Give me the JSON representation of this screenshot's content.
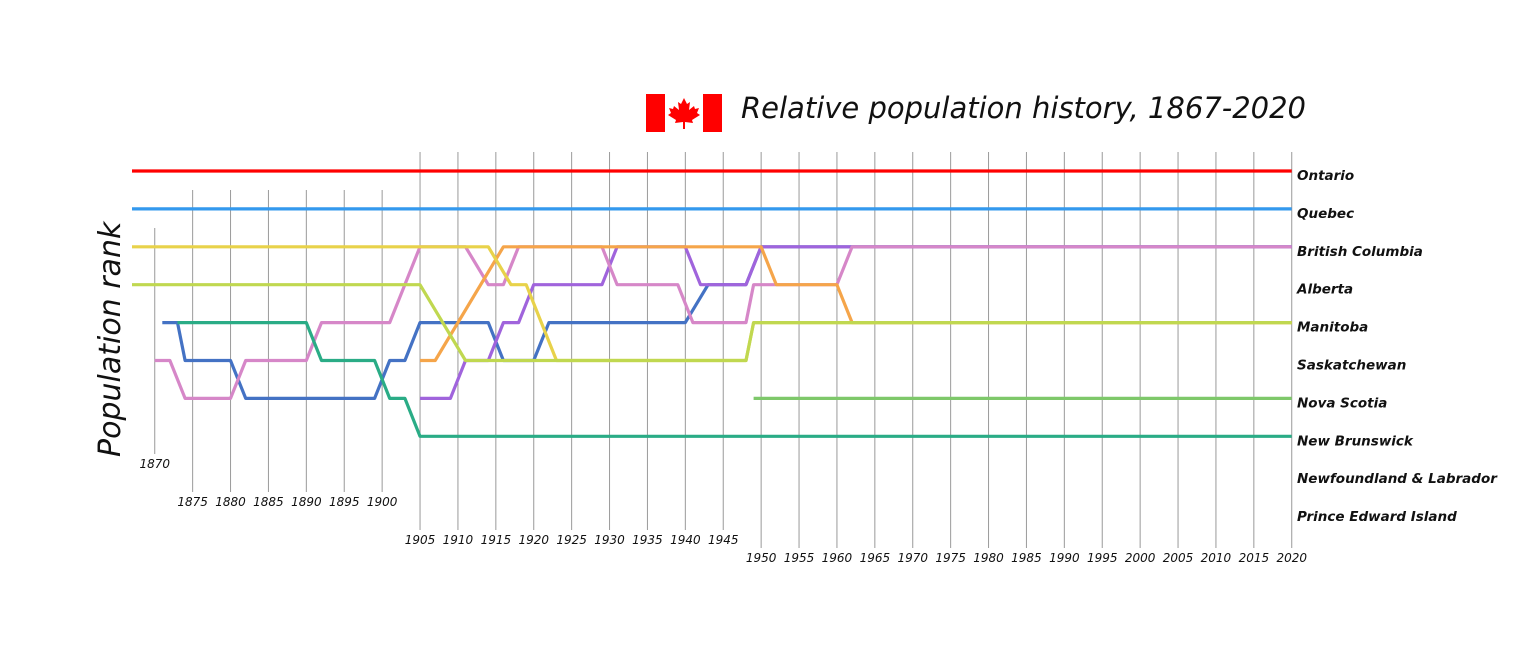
{
  "chart_data": {
    "type": "line",
    "title": "Relative population history, 1867-2020",
    "ylabel": "Population rank",
    "xlabel": "",
    "xlim": [
      1867,
      2020
    ],
    "x_ticks": [
      {
        "year": 1870,
        "label": "1870"
      },
      {
        "year": 1875,
        "label": "1875"
      },
      {
        "year": 1880,
        "label": "1880"
      },
      {
        "year": 1885,
        "label": "1885"
      },
      {
        "year": 1890,
        "label": "1890"
      },
      {
        "year": 1895,
        "label": "1895"
      },
      {
        "year": 1900,
        "label": "1900"
      },
      {
        "year": 1905,
        "label": "1905"
      },
      {
        "year": 1910,
        "label": "1910"
      },
      {
        "year": 1915,
        "label": "1915"
      },
      {
        "year": 1920,
        "label": "1920"
      },
      {
        "year": 1925,
        "label": "1925"
      },
      {
        "year": 1930,
        "label": "1930"
      },
      {
        "year": 1935,
        "label": "1935"
      },
      {
        "year": 1940,
        "label": "1940"
      },
      {
        "year": 1945,
        "label": "1945"
      },
      {
        "year": 1950,
        "label": "1950"
      },
      {
        "year": 1955,
        "label": "1955"
      },
      {
        "year": 1960,
        "label": "1960"
      },
      {
        "year": 1965,
        "label": "1965"
      },
      {
        "year": 1970,
        "label": "1970"
      },
      {
        "year": 1975,
        "label": "1975"
      },
      {
        "year": 1980,
        "label": "1980"
      },
      {
        "year": 1985,
        "label": "1985"
      },
      {
        "year": 1990,
        "label": "1990"
      },
      {
        "year": 1995,
        "label": "1995"
      },
      {
        "year": 2000,
        "label": "2000"
      },
      {
        "year": 2005,
        "label": "2005"
      },
      {
        "year": 2010,
        "label": "2010"
      },
      {
        "year": 2015,
        "label": "2015"
      },
      {
        "year": 2020,
        "label": "2020"
      }
    ],
    "series": [
      {
        "name": "Ontario",
        "color": "#ff0000",
        "points": [
          [
            1867,
            1
          ],
          [
            1869,
            1
          ],
          [
            1874,
            1
          ],
          [
            1903,
            1
          ],
          [
            1905,
            1
          ],
          [
            1948,
            1
          ],
          [
            1949,
            1
          ],
          [
            2020,
            1
          ]
        ]
      },
      {
        "name": "Quebec",
        "color": "#3399ee",
        "points": [
          [
            1867,
            2
          ],
          [
            1869,
            2
          ],
          [
            1874,
            2
          ],
          [
            1903,
            2
          ],
          [
            1905,
            2
          ],
          [
            1948,
            2
          ],
          [
            1949,
            2
          ],
          [
            2020,
            2
          ]
        ]
      },
      {
        "name": "British Columbia",
        "color": "#4472c4",
        "points": [
          [
            1871,
            5
          ],
          [
            1873,
            5
          ],
          [
            1874,
            6
          ],
          [
            1880,
            6
          ],
          [
            1882,
            7
          ],
          [
            1899,
            7
          ],
          [
            1901,
            6
          ],
          [
            1903,
            6
          ],
          [
            1905,
            5
          ],
          [
            1914,
            5
          ],
          [
            1916,
            6
          ],
          [
            1920,
            6
          ],
          [
            1922,
            5
          ],
          [
            1940,
            5
          ],
          [
            1943,
            4
          ],
          [
            1948,
            4
          ],
          [
            1950,
            3
          ],
          [
            2020,
            3
          ]
        ]
      },
      {
        "name": "Alberta",
        "color": "#a064dc",
        "points": [
          [
            1905,
            7
          ],
          [
            1909,
            7
          ],
          [
            1911,
            6
          ],
          [
            1914,
            6
          ],
          [
            1916,
            5
          ],
          [
            1918,
            5
          ],
          [
            1920,
            4
          ],
          [
            1929,
            4
          ],
          [
            1931,
            3
          ],
          [
            1940,
            3
          ],
          [
            1942,
            4
          ],
          [
            1948,
            4
          ],
          [
            1950,
            3
          ],
          [
            2020,
            3
          ]
        ]
      },
      {
        "name": "Manitoba",
        "color": "#d687c8",
        "points": [
          [
            1870,
            6
          ],
          [
            1872,
            6
          ],
          [
            1874,
            7
          ],
          [
            1880,
            7
          ],
          [
            1882,
            6
          ],
          [
            1890,
            6
          ],
          [
            1892,
            5
          ],
          [
            1901,
            5
          ],
          [
            1905,
            3
          ],
          [
            1911,
            3
          ],
          [
            1914,
            4
          ],
          [
            1916,
            4
          ],
          [
            1918,
            3
          ],
          [
            1929,
            3
          ],
          [
            1931,
            4
          ],
          [
            1939,
            4
          ],
          [
            1941,
            5
          ],
          [
            1948,
            5
          ],
          [
            1949,
            4
          ],
          [
            1960,
            4
          ],
          [
            1962,
            3
          ],
          [
            2020,
            3
          ]
        ]
      },
      {
        "name": "Saskatchewan",
        "color": "#f5a54a",
        "points": [
          [
            1905,
            6
          ],
          [
            1907,
            6
          ],
          [
            1916,
            3
          ],
          [
            1948,
            3
          ],
          [
            1950,
            3
          ],
          [
            1952,
            4
          ],
          [
            1960,
            4
          ],
          [
            1962,
            5
          ],
          [
            2020,
            5
          ]
        ]
      },
      {
        "name": "Nova Scotia",
        "color": "#e8d24a",
        "points": [
          [
            1867,
            3
          ],
          [
            1869,
            3
          ],
          [
            1874,
            3
          ],
          [
            1903,
            3
          ],
          [
            1905,
            3
          ],
          [
            1914,
            3
          ],
          [
            1917,
            4
          ],
          [
            1919,
            4
          ],
          [
            1923,
            6
          ],
          [
            1948,
            6
          ],
          [
            1949,
            5
          ],
          [
            2020,
            5
          ]
        ]
      },
      {
        "name": "New Brunswick",
        "color": "#c0d850",
        "points": [
          [
            1867,
            4
          ],
          [
            1869,
            4
          ],
          [
            1874,
            4
          ],
          [
            1905,
            4
          ],
          [
            1911,
            6
          ],
          [
            1948,
            6
          ],
          [
            1949,
            5
          ],
          [
            2020,
            5
          ]
        ]
      },
      {
        "name": "Newfoundland & Labrador",
        "color": "#7ec86a",
        "points": [
          [
            1949,
            7
          ],
          [
            2020,
            7
          ]
        ]
      },
      {
        "name": "Prince Edward Island",
        "color": "#2aac86",
        "points": [
          [
            1873,
            5
          ],
          [
            1890,
            5
          ],
          [
            1892,
            6
          ],
          [
            1899,
            6
          ],
          [
            1901,
            7
          ],
          [
            1903,
            7
          ],
          [
            1905,
            8
          ],
          [
            1948,
            8
          ],
          [
            1949,
            8
          ],
          [
            2020,
            8
          ]
        ]
      }
    ],
    "grid": true,
    "legend": "right-end labels"
  }
}
